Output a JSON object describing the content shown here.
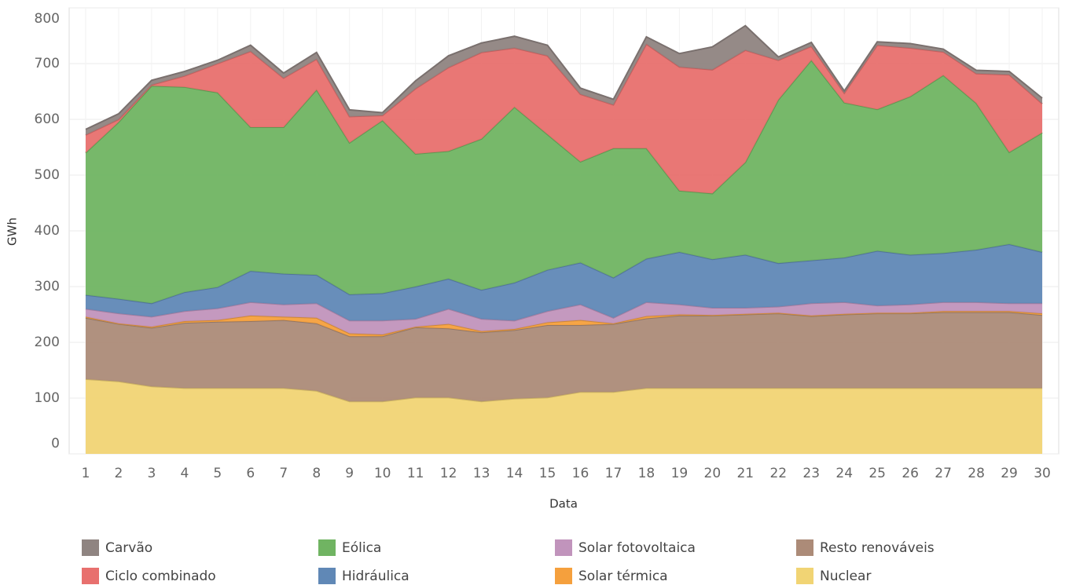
{
  "chart_data": {
    "type": "stacked_area",
    "xlabel": "Data",
    "ylabel": "GWh",
    "categories": [
      "1",
      "2",
      "3",
      "4",
      "5",
      "6",
      "7",
      "8",
      "9",
      "10",
      "11",
      "12",
      "13",
      "14",
      "15",
      "16",
      "17",
      "18",
      "19",
      "20",
      "21",
      "22",
      "23",
      "24",
      "25",
      "26",
      "27",
      "28",
      "29",
      "30"
    ],
    "ylim": [
      0,
      800
    ],
    "yticks": [
      0,
      100,
      200,
      300,
      400,
      500,
      600,
      700,
      800
    ],
    "grid": true,
    "legend": "bottom",
    "series": [
      {
        "name": "Carvão",
        "color": "#8f8481",
        "values": [
          10,
          10,
          8,
          8,
          6,
          11,
          9,
          12,
          12,
          5,
          14,
          21,
          17,
          21,
          19,
          11,
          10,
          13,
          24,
          41,
          44,
          6,
          7,
          4,
          6,
          8,
          5,
          6,
          6,
          10
        ]
      },
      {
        "name": "Ciclo combinado",
        "color": "#e8706e",
        "values": [
          32,
          5,
          2,
          20,
          52,
          136,
          88,
          55,
          47,
          9,
          117,
          150,
          155,
          106,
          141,
          121,
          78,
          187,
          222,
          222,
          201,
          71,
          25,
          17,
          115,
          87,
          42,
          53,
          139,
          52
        ]
      },
      {
        "name": "Eólica",
        "color": "#70b462",
        "values": [
          255,
          317,
          390,
          368,
          349,
          258,
          263,
          332,
          272,
          310,
          238,
          229,
          271,
          315,
          243,
          181,
          232,
          198,
          110,
          118,
          166,
          293,
          359,
          278,
          254,
          284,
          319,
          263,
          165,
          214
        ]
      },
      {
        "name": "Hidráulica",
        "color": "#6088b6",
        "values": [
          25,
          26,
          24,
          34,
          38,
          56,
          55,
          51,
          47,
          49,
          58,
          54,
          52,
          68,
          74,
          75,
          72,
          78,
          94,
          87,
          95,
          78,
          77,
          80,
          98,
          89,
          88,
          94,
          106,
          92
        ]
      },
      {
        "name": "Solar fotovoltaica",
        "color": "#c194bc",
        "values": [
          14,
          18,
          18,
          18,
          21,
          24,
          22,
          26,
          23,
          25,
          14,
          27,
          22,
          15,
          20,
          28,
          10,
          25,
          18,
          13,
          11,
          11,
          22,
          21,
          13,
          15,
          16,
          16,
          14,
          18
        ]
      },
      {
        "name": "Solar térmica",
        "color": "#f5a03d",
        "values": [
          2,
          1,
          2,
          3,
          3,
          10,
          6,
          10,
          5,
          3,
          1,
          8,
          2,
          2,
          5,
          9,
          1,
          4,
          2,
          1,
          1,
          1,
          1,
          1,
          1,
          1,
          2,
          2,
          2,
          3
        ]
      },
      {
        "name": "Resto renováveis",
        "color": "#ac8b78",
        "values": [
          110,
          103,
          105,
          117,
          119,
          120,
          122,
          121,
          117,
          117,
          126,
          124,
          124,
          123,
          130,
          120,
          122,
          125,
          130,
          130,
          132,
          134,
          129,
          132,
          134,
          134,
          136,
          136,
          136,
          131
        ]
      },
      {
        "name": "Nuclear",
        "color": "#f1d474",
        "values": [
          134,
          130,
          121,
          118,
          118,
          118,
          118,
          113,
          94,
          94,
          101,
          101,
          94,
          99,
          101,
          111,
          111,
          118,
          118,
          118,
          118,
          118,
          118,
          118,
          118,
          118,
          118,
          118,
          118,
          118
        ]
      }
    ]
  }
}
